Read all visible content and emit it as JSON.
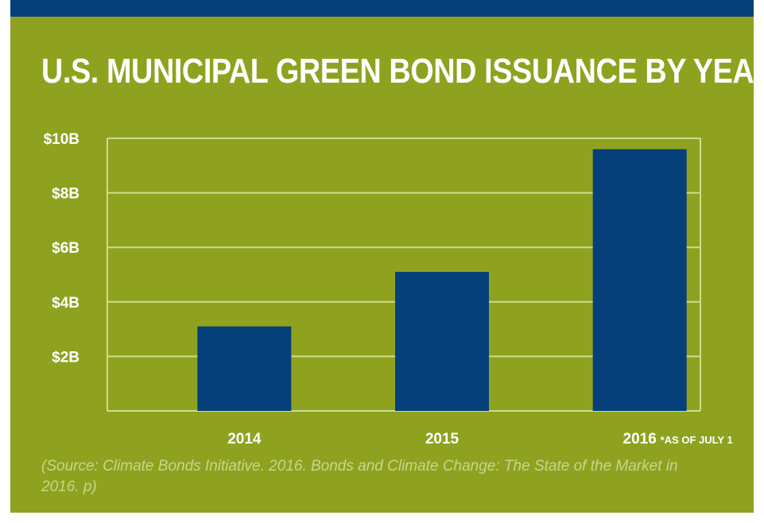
{
  "colors": {
    "panel": "#8fa21f",
    "top_bar": "#05407a",
    "bar": "#05407a",
    "grid": "#cfdc8e",
    "text": "#ffffff",
    "source_text": "#c9d58e"
  },
  "source": "(Source: Climate Bonds Initiative. 2016. Bonds and Climate Change: The State of the Market in 2016. p)",
  "chart_data": {
    "type": "bar",
    "title": "U.S. MUNICIPAL GREEN BOND ISSUANCE BY YEAR",
    "xlabel": "",
    "ylabel": "",
    "categories": [
      "2014",
      "2015",
      "2016"
    ],
    "category_notes": [
      "",
      "",
      "*AS OF JULY 1"
    ],
    "values": [
      3.1,
      5.1,
      9.6
    ],
    "unit": "billion USD",
    "ylim": [
      0,
      10
    ],
    "yticks": [
      2,
      4,
      6,
      8,
      10
    ],
    "ytick_labels": [
      "$2B",
      "$4B",
      "$6B",
      "$8B",
      "$10B"
    ],
    "grid": true,
    "legend": "none"
  }
}
